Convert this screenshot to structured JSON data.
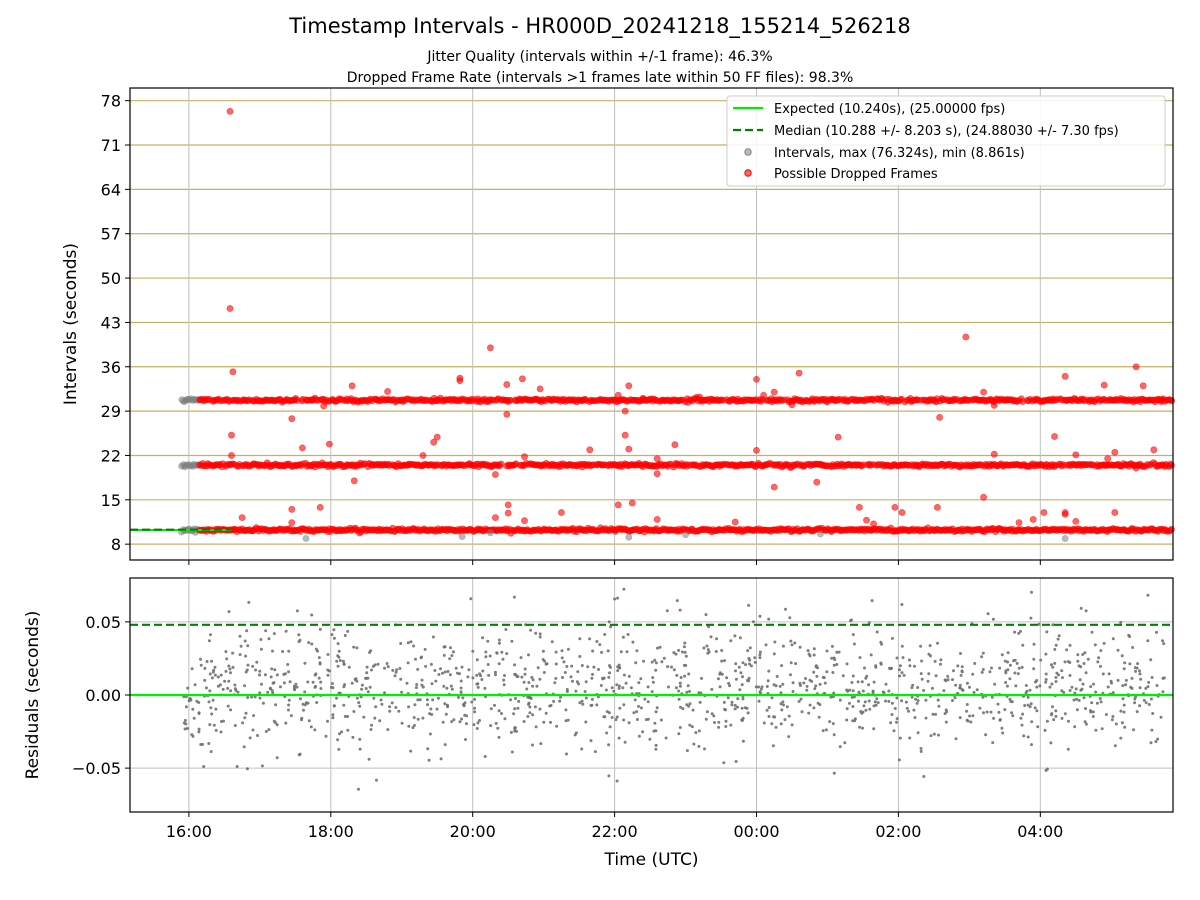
{
  "title": "Timestamp Intervals - HR000D_20241218_155214_526218",
  "subtitle_jitter": "Jitter Quality (intervals within +/-1 frame): 46.3%",
  "subtitle_dropped": "Dropped Frame Rate (intervals >1 frames late within 50 FF files): 98.3%",
  "colors": {
    "expected": "#00ee00",
    "median": "#008000",
    "intervals": "#808080",
    "dropped": "#ff0000",
    "grid_top": "#c8b060",
    "grid_bottom": "#c0c0c0"
  },
  "chart_data": [
    {
      "type": "scatter",
      "ylabel": "Intervals (seconds)",
      "xlabel": "",
      "x_range_hours": [
        15.17,
        29.87
      ],
      "ylim": [
        5.5,
        80
      ],
      "y_ticks": [
        8,
        15,
        22,
        29,
        36,
        43,
        50,
        57,
        64,
        71,
        78
      ],
      "y_tick_labels": [
        "8",
        "15",
        "22",
        "29",
        "36",
        "43",
        "50",
        "57",
        "64",
        "71",
        "78"
      ],
      "grid": true,
      "legend_position": "top-right",
      "legend": [
        {
          "key": "expected",
          "label": "Expected (10.240s), (25.00000 fps)",
          "style": "solid-line"
        },
        {
          "key": "median",
          "label": "Median (10.288 +/- 8.203 s), (24.88030 +/- 7.30 fps)",
          "style": "dashed-line"
        },
        {
          "key": "intervals",
          "label": "Intervals, max (76.324s), min (8.861s)",
          "style": "gray-dot"
        },
        {
          "key": "dropped",
          "label": "Possible Dropped Frames",
          "style": "red-dot"
        }
      ],
      "expected_interval": 10.24,
      "median_interval": 10.288,
      "x_start": 15.9,
      "x_end": 29.87,
      "dropped_start": 16.15,
      "bands": [
        10.24,
        20.48,
        30.72
      ],
      "gray_outliers": [
        [
          17.65,
          8.9
        ],
        [
          19.85,
          9.2
        ],
        [
          22.2,
          9.1
        ],
        [
          23.0,
          9.5
        ],
        [
          24.9,
          9.6
        ],
        [
          28.35,
          8.9
        ],
        [
          20.25,
          9.8
        ]
      ],
      "red_outliers": [
        [
          16.58,
          76.3
        ],
        [
          16.58,
          45.2
        ],
        [
          16.62,
          35.2
        ],
        [
          16.6,
          25.2
        ],
        [
          16.6,
          22.0
        ],
        [
          16.75,
          12.2
        ],
        [
          17.45,
          27.8
        ],
        [
          17.45,
          13.5
        ],
        [
          17.45,
          11.4
        ],
        [
          17.6,
          23.2
        ],
        [
          17.85,
          13.8
        ],
        [
          17.9,
          29.8
        ],
        [
          17.98,
          23.8
        ],
        [
          18.3,
          33.0
        ],
        [
          18.33,
          18.0
        ],
        [
          18.8,
          32.1
        ],
        [
          19.3,
          22.0
        ],
        [
          19.45,
          24.1
        ],
        [
          19.5,
          24.9
        ],
        [
          19.82,
          34.2
        ],
        [
          19.82,
          33.8
        ],
        [
          20.25,
          39.0
        ],
        [
          20.32,
          12.2
        ],
        [
          20.32,
          19.0
        ],
        [
          20.48,
          28.5
        ],
        [
          20.48,
          33.2
        ],
        [
          20.5,
          14.2
        ],
        [
          20.5,
          12.9
        ],
        [
          20.7,
          34.1
        ],
        [
          20.73,
          21.8
        ],
        [
          20.73,
          11.7
        ],
        [
          20.95,
          32.5
        ],
        [
          21.25,
          13.0
        ],
        [
          21.65,
          22.9
        ],
        [
          22.05,
          31.5
        ],
        [
          22.05,
          14.2
        ],
        [
          22.15,
          25.2
        ],
        [
          22.15,
          29.0
        ],
        [
          22.2,
          33.0
        ],
        [
          22.2,
          23.0
        ],
        [
          22.25,
          14.5
        ],
        [
          22.4,
          31.0
        ],
        [
          22.6,
          19.1
        ],
        [
          22.6,
          21.5
        ],
        [
          22.6,
          11.9
        ],
        [
          22.85,
          23.7
        ],
        [
          23.2,
          31.2
        ],
        [
          23.7,
          11.5
        ],
        [
          24.0,
          34.0
        ],
        [
          24.0,
          22.8
        ],
        [
          24.1,
          31.5
        ],
        [
          24.25,
          17.0
        ],
        [
          24.25,
          32.0
        ],
        [
          24.5,
          30.0
        ],
        [
          24.6,
          35.0
        ],
        [
          24.85,
          17.8
        ],
        [
          25.15,
          24.9
        ],
        [
          25.45,
          13.8
        ],
        [
          25.55,
          11.8
        ],
        [
          25.65,
          11.2
        ],
        [
          25.95,
          13.8
        ],
        [
          26.05,
          13.0
        ],
        [
          26.55,
          13.8
        ],
        [
          26.58,
          28.0
        ],
        [
          26.95,
          40.7
        ],
        [
          27.2,
          32.0
        ],
        [
          27.2,
          15.4
        ],
        [
          27.35,
          22.2
        ],
        [
          27.35,
          29.9
        ],
        [
          27.7,
          11.4
        ],
        [
          27.9,
          11.9
        ],
        [
          28.05,
          13.0
        ],
        [
          28.2,
          25.0
        ],
        [
          28.35,
          34.5
        ],
        [
          28.35,
          13.0
        ],
        [
          28.35,
          12.7
        ],
        [
          28.5,
          22.1
        ],
        [
          28.5,
          11.6
        ],
        [
          28.9,
          33.1
        ],
        [
          28.95,
          21.5
        ],
        [
          29.05,
          13.0
        ],
        [
          29.05,
          22.5
        ],
        [
          29.35,
          36.0
        ],
        [
          29.45,
          33.0
        ],
        [
          29.6,
          22.9
        ],
        [
          29.35,
          20.0
        ],
        [
          29.7,
          30.5
        ]
      ]
    },
    {
      "type": "scatter",
      "ylabel": "Residuals (seconds)",
      "xlabel": "Time (UTC)",
      "x_range_hours": [
        15.17,
        29.87
      ],
      "ylim": [
        -0.08,
        0.08
      ],
      "y_ticks": [
        -0.05,
        0.0,
        0.05
      ],
      "y_tick_labels": [
        "−0.05",
        "0.00",
        "0.05"
      ],
      "x_ticks": [
        16,
        18,
        20,
        22,
        24,
        26,
        28
      ],
      "x_tick_labels": [
        "16:00",
        "18:00",
        "20:00",
        "22:00",
        "00:00",
        "02:00",
        "04:00"
      ],
      "grid": true,
      "expected_residual": 0.0,
      "median_residual": 0.048,
      "residual_x_start": 15.92,
      "residual_x_end": 29.75,
      "residual_count": 1400,
      "residual_sigma": 0.022,
      "residual_offset": 0.006
    }
  ]
}
